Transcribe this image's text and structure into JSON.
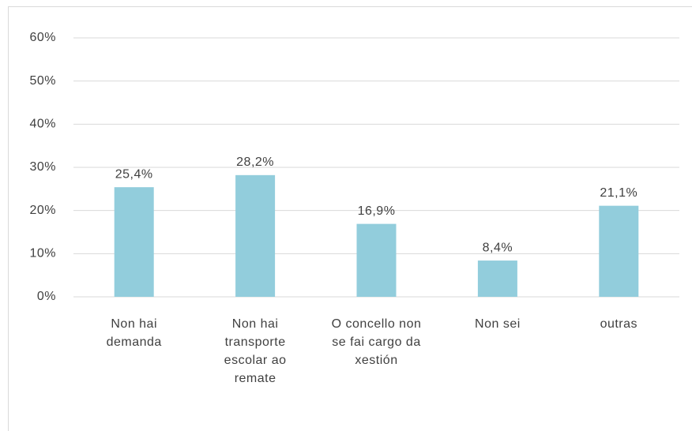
{
  "chart_data": {
    "type": "bar",
    "categories": [
      "Non hai demanda",
      "Non hai transporte escolar ao remate",
      "O concello non se fai cargo da xestión",
      "Non sei",
      "outras"
    ],
    "values": [
      25.4,
      28.2,
      16.9,
      8.4,
      21.1
    ],
    "value_labels": [
      "25,4%",
      "28,2%",
      "16,9%",
      "8,4%",
      "21,1%"
    ],
    "color": "#92cddc",
    "ylim": [
      0,
      60
    ],
    "yticks": [
      {
        "value": 0,
        "label": "0%"
      },
      {
        "value": 10,
        "label": "10%"
      },
      {
        "value": 20,
        "label": "20%"
      },
      {
        "value": 30,
        "label": "30%"
      },
      {
        "value": 40,
        "label": "40%"
      },
      {
        "value": 50,
        "label": "50%"
      },
      {
        "value": 60,
        "label": "60%"
      }
    ],
    "grid": true
  }
}
